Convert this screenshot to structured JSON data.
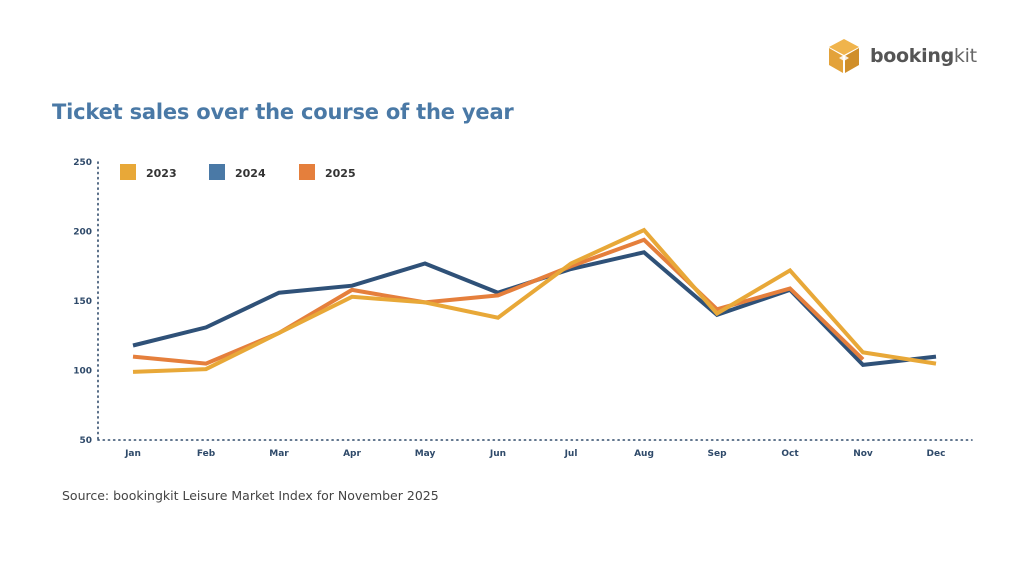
{
  "brand": {
    "name_bold": "booking",
    "name_light": "kit",
    "logo_color": "#e3a23a"
  },
  "chart_data": {
    "type": "line",
    "title": "Ticket sales over the course of the year",
    "xlabel": "",
    "ylabel": "",
    "categories": [
      "Jan",
      "Feb",
      "Mar",
      "Apr",
      "May",
      "Jun",
      "Jul",
      "Aug",
      "Sep",
      "Oct",
      "Nov",
      "Dec"
    ],
    "yticks": [
      50,
      100,
      150,
      200,
      250
    ],
    "ylim": [
      50,
      250
    ],
    "grid": false,
    "legend_position": "top-left",
    "series": [
      {
        "name": "2023",
        "color": "#e8a838",
        "values": [
          99,
          101,
          127,
          153,
          149,
          138,
          177,
          201,
          141,
          172,
          113,
          105
        ]
      },
      {
        "name": "2024",
        "color": "#2f5178",
        "values": [
          118,
          131,
          156,
          161,
          177,
          156,
          173,
          185,
          140,
          158,
          104,
          110
        ]
      },
      {
        "name": "2025",
        "color": "#e57f3c",
        "values": [
          110,
          105,
          127,
          158,
          149,
          154,
          175,
          194,
          144,
          159,
          108,
          null
        ]
      }
    ],
    "legend_swatch_colors": {
      "2023": "#e8a838",
      "2024": "#4a79a6",
      "2025": "#e57f3c"
    }
  },
  "footer": {
    "source": "Source: bookingkit Leisure Market Index for November 2025"
  }
}
